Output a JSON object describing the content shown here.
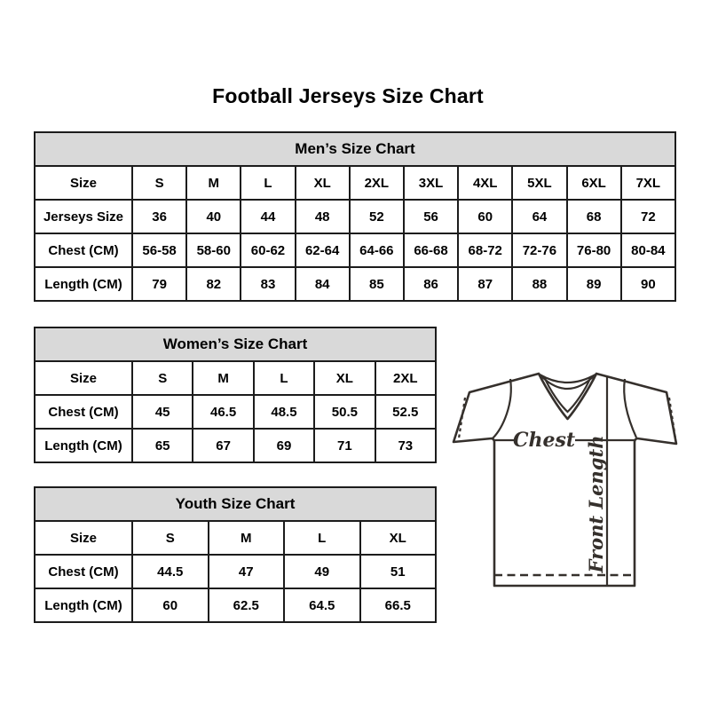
{
  "page": {
    "title": "Football Jerseys Size Chart"
  },
  "colors": {
    "header_bg": "#d9d9d9",
    "border": "#1c1c1c",
    "text": "#000000",
    "diagram_ink": "#35302c"
  },
  "tables": {
    "men": {
      "title": "Men’s Size Chart",
      "rows": [
        {
          "label": "Size",
          "values": [
            "S",
            "M",
            "L",
            "XL",
            "2XL",
            "3XL",
            "4XL",
            "5XL",
            "6XL",
            "7XL"
          ]
        },
        {
          "label": "Jerseys Size",
          "values": [
            "36",
            "40",
            "44",
            "48",
            "52",
            "56",
            "60",
            "64",
            "68",
            "72"
          ]
        },
        {
          "label": "Chest (CM)",
          "values": [
            "56-58",
            "58-60",
            "60-62",
            "62-64",
            "64-66",
            "66-68",
            "68-72",
            "72-76",
            "76-80",
            "80-84"
          ]
        },
        {
          "label": "Length (CM)",
          "values": [
            "79",
            "82",
            "83",
            "84",
            "85",
            "86",
            "87",
            "88",
            "89",
            "90"
          ]
        }
      ]
    },
    "women": {
      "title": "Women’s Size Chart",
      "rows": [
        {
          "label": "Size",
          "values": [
            "S",
            "M",
            "L",
            "XL",
            "2XL"
          ]
        },
        {
          "label": "Chest (CM)",
          "values": [
            "45",
            "46.5",
            "48.5",
            "50.5",
            "52.5"
          ]
        },
        {
          "label": "Length (CM)",
          "values": [
            "65",
            "67",
            "69",
            "71",
            "73"
          ]
        }
      ]
    },
    "youth": {
      "title": "Youth Size Chart",
      "rows": [
        {
          "label": "Size",
          "values": [
            "S",
            "M",
            "L",
            "XL"
          ]
        },
        {
          "label": "Chest (CM)",
          "values": [
            "44.5",
            "47",
            "49",
            "51"
          ]
        },
        {
          "label": "Length (CM)",
          "values": [
            "60",
            "62.5",
            "64.5",
            "66.5"
          ]
        }
      ]
    }
  },
  "diagram": {
    "chest_label": "Chest",
    "front_length_label": "Front Length"
  }
}
